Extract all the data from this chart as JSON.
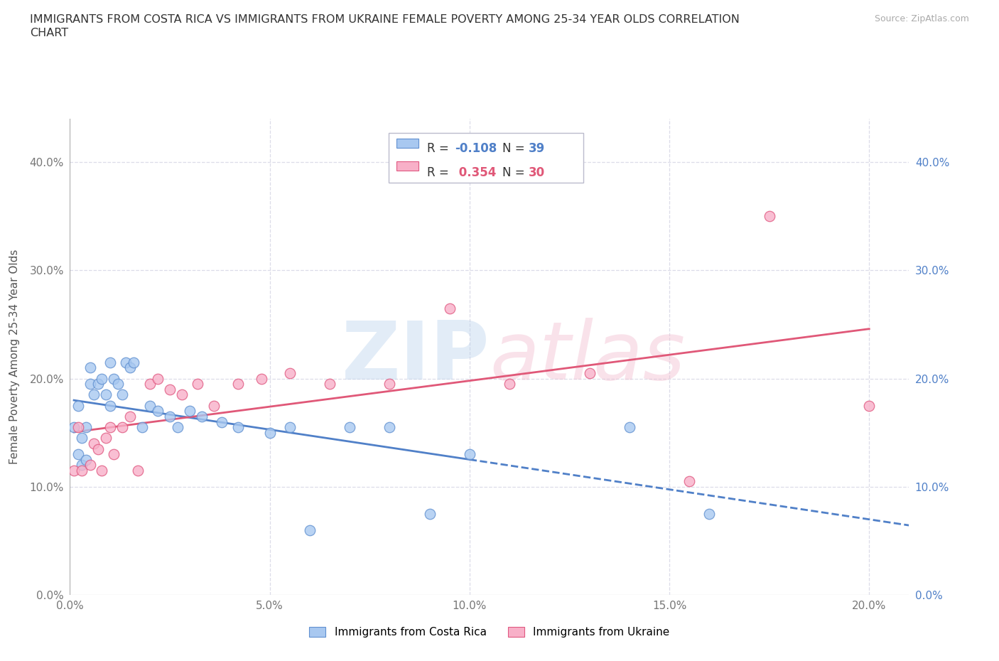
{
  "title_line1": "IMMIGRANTS FROM COSTA RICA VS IMMIGRANTS FROM UKRAINE FEMALE POVERTY AMONG 25-34 YEAR OLDS CORRELATION",
  "title_line2": "CHART",
  "source": "Source: ZipAtlas.com",
  "ylabel": "Female Poverty Among 25-34 Year Olds",
  "xlim": [
    0.0,
    0.21
  ],
  "ylim": [
    0.0,
    0.44
  ],
  "xticks": [
    0.0,
    0.05,
    0.1,
    0.15,
    0.2
  ],
  "yticks": [
    0.0,
    0.1,
    0.2,
    0.3,
    0.4
  ],
  "xticklabels": [
    "0.0%",
    "5.0%",
    "10.0%",
    "15.0%",
    "20.0%"
  ],
  "yticklabels": [
    "0.0%",
    "10.0%",
    "20.0%",
    "30.0%",
    "40.0%"
  ],
  "costa_rica_R": -0.108,
  "costa_rica_N": 39,
  "ukraine_R": 0.354,
  "ukraine_N": 30,
  "costa_rica_color": "#a8c8f0",
  "ukraine_color": "#f8b0c8",
  "costa_rica_edge": "#6090d0",
  "ukraine_edge": "#e05880",
  "costa_rica_line": "#5080c8",
  "ukraine_line": "#e05878",
  "background_color": "#ffffff",
  "grid_color": "#dcdce8",
  "costa_rica_x": [
    0.001,
    0.002,
    0.002,
    0.003,
    0.003,
    0.004,
    0.004,
    0.005,
    0.005,
    0.006,
    0.007,
    0.008,
    0.009,
    0.01,
    0.01,
    0.011,
    0.012,
    0.013,
    0.014,
    0.015,
    0.016,
    0.018,
    0.02,
    0.022,
    0.025,
    0.027,
    0.03,
    0.033,
    0.038,
    0.042,
    0.05,
    0.055,
    0.06,
    0.07,
    0.08,
    0.09,
    0.1,
    0.14,
    0.16
  ],
  "costa_rica_y": [
    0.155,
    0.175,
    0.13,
    0.12,
    0.145,
    0.155,
    0.125,
    0.21,
    0.195,
    0.185,
    0.195,
    0.2,
    0.185,
    0.175,
    0.215,
    0.2,
    0.195,
    0.185,
    0.215,
    0.21,
    0.215,
    0.155,
    0.175,
    0.17,
    0.165,
    0.155,
    0.17,
    0.165,
    0.16,
    0.155,
    0.15,
    0.155,
    0.06,
    0.155,
    0.155,
    0.075,
    0.13,
    0.155,
    0.075
  ],
  "ukraine_x": [
    0.001,
    0.002,
    0.003,
    0.005,
    0.006,
    0.007,
    0.008,
    0.009,
    0.01,
    0.011,
    0.013,
    0.015,
    0.017,
    0.02,
    0.022,
    0.025,
    0.028,
    0.032,
    0.036,
    0.042,
    0.048,
    0.055,
    0.065,
    0.08,
    0.095,
    0.11,
    0.13,
    0.155,
    0.175,
    0.2
  ],
  "ukraine_y": [
    0.115,
    0.155,
    0.115,
    0.12,
    0.14,
    0.135,
    0.115,
    0.145,
    0.155,
    0.13,
    0.155,
    0.165,
    0.115,
    0.195,
    0.2,
    0.19,
    0.185,
    0.195,
    0.175,
    0.195,
    0.2,
    0.205,
    0.195,
    0.195,
    0.265,
    0.195,
    0.205,
    0.105,
    0.35,
    0.175
  ]
}
